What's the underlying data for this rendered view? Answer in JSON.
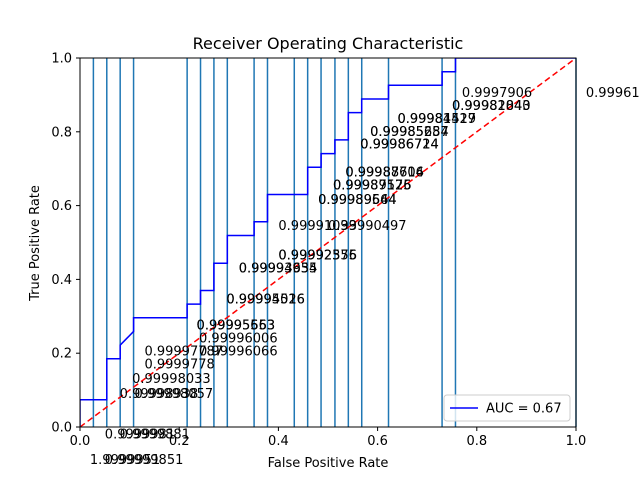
{
  "chart_data": {
    "type": "line",
    "title": "Receiver Operating Characteristic",
    "xlabel": "False Positive Rate",
    "ylabel": "True Positive Rate",
    "xlim": [
      0,
      1
    ],
    "ylim": [
      0,
      1
    ],
    "xticks": [
      "0.0",
      "0.2",
      "0.4",
      "0.6",
      "0.8",
      "1.0"
    ],
    "yticks": [
      "0.0",
      "0.2",
      "0.4",
      "0.6",
      "0.8",
      "1.0"
    ],
    "grid": false,
    "legend_placement": "lower right",
    "colors": {
      "roc": "#0000ff",
      "chance": "#ff0000",
      "threshold_lines": "#1f77b4"
    },
    "series": [
      {
        "name": "AUC = 0.67",
        "style": "solid",
        "x": [
          0,
          0,
          0.027,
          0.027,
          0.054,
          0.054,
          0.081,
          0.081,
          0.108,
          0.108,
          0.216,
          0.216,
          0.243,
          0.243,
          0.27,
          0.27,
          0.297,
          0.297,
          0.351,
          0.351,
          0.378,
          0.378,
          0.432,
          0.432,
          0.459,
          0.459,
          0.486,
          0.486,
          0.514,
          0.514,
          0.541,
          0.541,
          0.568,
          0.568,
          0.622,
          0.622,
          0.73,
          0.73,
          0.757,
          0.757,
          1.0
        ],
        "y": [
          0,
          0.074,
          0.074,
          0.074,
          0.074,
          0.185,
          0.185,
          0.222,
          0.259,
          0.296,
          0.296,
          0.333,
          0.333,
          0.37,
          0.37,
          0.444,
          0.444,
          0.519,
          0.519,
          0.556,
          0.556,
          0.63,
          0.63,
          0.63,
          0.63,
          0.704,
          0.704,
          0.741,
          0.741,
          0.778,
          0.778,
          0.852,
          0.852,
          0.889,
          0.889,
          0.926,
          0.926,
          0.963,
          0.963,
          1.0,
          1.0
        ]
      },
      {
        "name": "",
        "style": "dashed",
        "x": [
          0,
          1
        ],
        "y": [
          0,
          1
        ]
      }
    ],
    "threshold_lines_x": [
      0.027,
      0.054,
      0.081,
      0.108,
      0.216,
      0.243,
      0.27,
      0.297,
      0.351,
      0.378,
      0.432,
      0.459,
      0.486,
      0.514,
      0.541,
      0.568,
      0.622,
      0.73,
      0.757,
      1.0
    ],
    "threshold_labels": [
      {
        "text": "1.9999951",
        "x": 0.02,
        "y": -0.09
      },
      {
        "text": "0.99999851",
        "x": 0.05,
        "y": -0.09
      },
      {
        "text": "0.9999981",
        "x": 0.05,
        "y": -0.02
      },
      {
        "text": "0.9999881",
        "x": 0.08,
        "y": -0.02
      },
      {
        "text": "0.99998938",
        "x": 0.08,
        "y": 0.09
      },
      {
        "text": "0.99998057",
        "x": 0.11,
        "y": 0.09
      },
      {
        "text": "0.99998033",
        "x": 0.105,
        "y": 0.13
      },
      {
        "text": "0.9999778",
        "x": 0.13,
        "y": 0.17
      },
      {
        "text": "0.99997787",
        "x": 0.13,
        "y": 0.205
      },
      {
        "text": "0.99996066",
        "x": 0.24,
        "y": 0.205
      },
      {
        "text": "0.99996006",
        "x": 0.24,
        "y": 0.24
      },
      {
        "text": "0.99995553",
        "x": 0.235,
        "y": 0.275
      },
      {
        "text": "0.99995663",
        "x": 0.235,
        "y": 0.275
      },
      {
        "text": "0.99995016",
        "x": 0.295,
        "y": 0.345
      },
      {
        "text": "0.99994526",
        "x": 0.295,
        "y": 0.345
      },
      {
        "text": "0.99993634",
        "x": 0.32,
        "y": 0.43
      },
      {
        "text": "0.99994955",
        "x": 0.32,
        "y": 0.43
      },
      {
        "text": "0.99992555",
        "x": 0.4,
        "y": 0.465
      },
      {
        "text": "0.99992376",
        "x": 0.4,
        "y": 0.465
      },
      {
        "text": "0.99991033",
        "x": 0.4,
        "y": 0.545
      },
      {
        "text": "0.99990497",
        "x": 0.5,
        "y": 0.545
      },
      {
        "text": "0.99989644",
        "x": 0.48,
        "y": 0.615
      },
      {
        "text": "0.99989564",
        "x": 0.48,
        "y": 0.615
      },
      {
        "text": "0.99987176",
        "x": 0.51,
        "y": 0.655
      },
      {
        "text": "0.99989525",
        "x": 0.51,
        "y": 0.655
      },
      {
        "text": "0.99987614",
        "x": 0.535,
        "y": 0.69
      },
      {
        "text": "0.99988706",
        "x": 0.535,
        "y": 0.69
      },
      {
        "text": "0.99986724",
        "x": 0.565,
        "y": 0.765
      },
      {
        "text": "0.99986714",
        "x": 0.565,
        "y": 0.765
      },
      {
        "text": "0.99985254",
        "x": 0.585,
        "y": 0.8
      },
      {
        "text": "0.99985687",
        "x": 0.585,
        "y": 0.8
      },
      {
        "text": "0.99981517",
        "x": 0.64,
        "y": 0.835
      },
      {
        "text": "0.99984429",
        "x": 0.64,
        "y": 0.835
      },
      {
        "text": "0.99981843",
        "x": 0.75,
        "y": 0.87
      },
      {
        "text": "0.99982040",
        "x": 0.75,
        "y": 0.87
      },
      {
        "text": "0.9997906",
        "x": 0.77,
        "y": 0.905
      },
      {
        "text": "0.99961",
        "x": 1.02,
        "y": 0.905
      }
    ]
  }
}
